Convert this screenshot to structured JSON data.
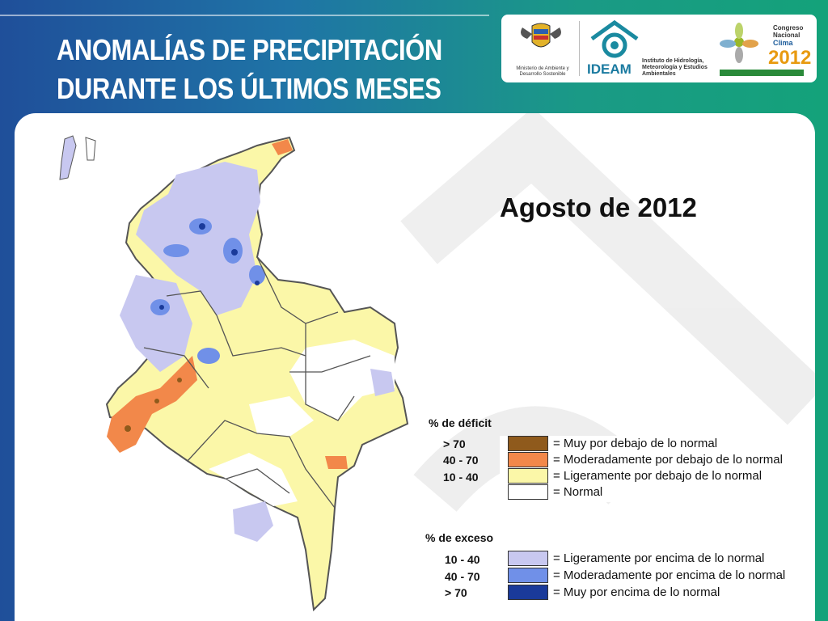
{
  "header": {
    "title_line1": "ANOMALÍAS DE PRECIPITACIÓN",
    "title_line2": "DURANTE LOS ÚLTIMOS MESES"
  },
  "logos": {
    "ministry_text": "Ministerio de Ambiente y Desarrollo Sostenible",
    "ideam_name": "IDEAM",
    "ideam_full": "Instituto de Hidrología, Meteorología y Estudios Ambientales",
    "congress_line1": "Congreso",
    "congress_line2": "Nacional",
    "congress_line3": "Clima",
    "congress_year": "2012"
  },
  "map": {
    "period": "Agosto de 2012",
    "colors": {
      "muy_debajo": "#8f5a1c",
      "moderado_debajo": "#f2884a",
      "ligero_debajo": "#fbf7a8",
      "normal": "#ffffff",
      "ligero_encima": "#c8c8f0",
      "moderado_encima": "#7090e8",
      "muy_encima": "#1a3a9a"
    }
  },
  "legend": {
    "deficit_title": "% de déficit",
    "deficit_rows": [
      {
        "range": "> 70",
        "label": "= Muy por debajo de lo normal",
        "color": "#8f5a1c"
      },
      {
        "range": "40 -  70",
        "label": "= Moderadamente por debajo de lo normal",
        "color": "#f2884a"
      },
      {
        "range": "10 -  40",
        "label": "= Ligeramente por debajo de lo normal",
        "color": "#fbf7a8"
      },
      {
        "range": "",
        "label": "= Normal",
        "color": "#ffffff"
      }
    ],
    "excess_title": "% de exceso",
    "excess_rows": [
      {
        "range": "10 -  40",
        "label": "= Ligeramente por encima de lo normal",
        "color": "#c8c8f0"
      },
      {
        "range": "40 -  70",
        "label": "= Moderadamente por encima de lo normal",
        "color": "#7090e8"
      },
      {
        "range": "> 70",
        "label": "= Muy por encima de lo normal",
        "color": "#1a3a9a"
      }
    ]
  }
}
